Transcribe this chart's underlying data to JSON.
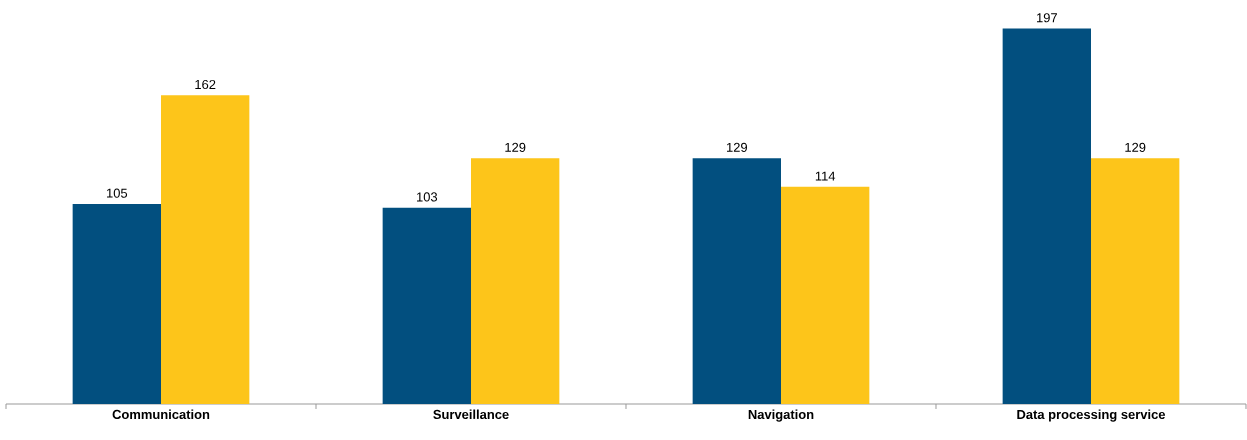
{
  "chart_data": {
    "type": "bar",
    "categories": [
      "Communication",
      "Surveillance",
      "Navigation",
      "Data processing service"
    ],
    "series": [
      {
        "color": "#024f7f",
        "values": [
          105,
          103,
          129,
          197
        ]
      },
      {
        "color": "#fdc51a",
        "values": [
          162,
          129,
          114,
          129
        ]
      }
    ],
    "data_labels": true
  }
}
